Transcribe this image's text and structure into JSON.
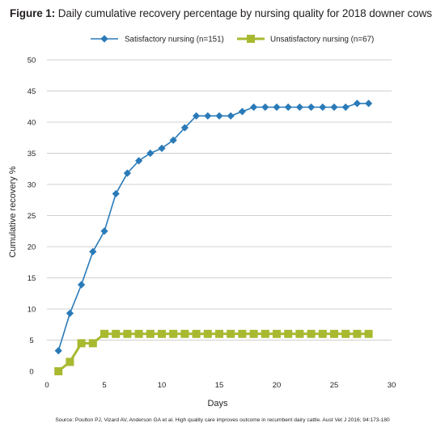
{
  "figure": {
    "label": "Figure 1:",
    "title": "Daily cumulative recovery percentage by nursing quality for 2018 downer cows",
    "source": "Source: Poulton PJ, Vizard AV, Anderson GA et al. High quality care improves outcome in recumbent dairy cattle. Aust Vet J 2016; 94:173-180"
  },
  "chart_data": {
    "type": "line",
    "xlabel": "Days",
    "ylabel": "Cumulative recovery %",
    "xlim": [
      0,
      30
    ],
    "ylim": [
      0,
      50
    ],
    "xticks": [
      0,
      5,
      10,
      15,
      20,
      25,
      30
    ],
    "yticks": [
      0,
      5,
      10,
      15,
      20,
      25,
      30,
      35,
      40,
      45,
      50
    ],
    "grid": "horizontal",
    "legend_position": "top",
    "series": [
      {
        "name": "Satisfactory nursing (n=151)",
        "marker": "diamond",
        "color": "#2a7ab8",
        "x": [
          1,
          2,
          3,
          4,
          5,
          6,
          7,
          8,
          9,
          10,
          11,
          12,
          13,
          14,
          15,
          16,
          17,
          18,
          19,
          20,
          21,
          22,
          23,
          24,
          25,
          26,
          27,
          28
        ],
        "y": [
          3.3,
          9.3,
          13.9,
          19.2,
          22.5,
          28.5,
          31.8,
          33.8,
          35.0,
          35.8,
          37.1,
          39.1,
          41.0,
          41.0,
          41.0,
          41.0,
          41.7,
          42.4,
          42.4,
          42.4,
          42.4,
          42.4,
          42.4,
          42.4,
          42.4,
          42.4,
          43.0,
          43.0
        ]
      },
      {
        "name": "Unsatisfactory nursing (n=67)",
        "marker": "square",
        "color": "#a8b930",
        "x": [
          1,
          2,
          3,
          4,
          5,
          6,
          7,
          8,
          9,
          10,
          11,
          12,
          13,
          14,
          15,
          16,
          17,
          18,
          19,
          20,
          21,
          22,
          23,
          24,
          25,
          26,
          27,
          28
        ],
        "y": [
          0,
          1.5,
          4.5,
          4.5,
          6.0,
          6.0,
          6.0,
          6.0,
          6.0,
          6.0,
          6.0,
          6.0,
          6.0,
          6.0,
          6.0,
          6.0,
          6.0,
          6.0,
          6.0,
          6.0,
          6.0,
          6.0,
          6.0,
          6.0,
          6.0,
          6.0,
          6.0,
          6.0
        ]
      }
    ]
  }
}
